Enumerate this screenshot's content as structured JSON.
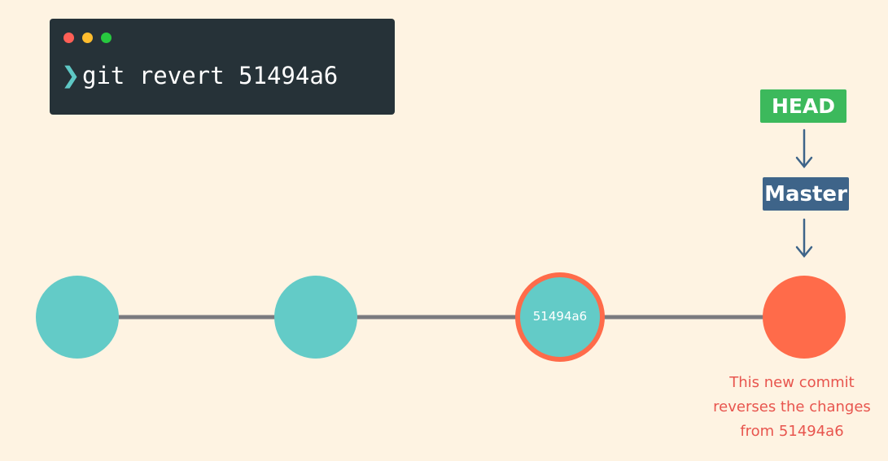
{
  "terminal": {
    "prompt_symbol": "❯",
    "command": "git revert 51494a6"
  },
  "labels": {
    "head": "HEAD",
    "master": "Master"
  },
  "commits": [
    {
      "label": ""
    },
    {
      "label": ""
    },
    {
      "label": "51494a6"
    },
    {
      "label": ""
    }
  ],
  "annotation": {
    "line1": "This new commit",
    "line2": "reverses the changes",
    "line3": "from 51494a6"
  },
  "colors": {
    "background": "#fef3e2",
    "terminal_bg": "#263238",
    "commit": "#63cbc7",
    "reverted_outline": "#ff6b4a",
    "new_commit": "#ff6b4a",
    "head": "#3cb95c",
    "master": "#3e6489",
    "edge": "#7a7a7f",
    "arrow": "#3e6489",
    "annotation": "#e8554e"
  }
}
